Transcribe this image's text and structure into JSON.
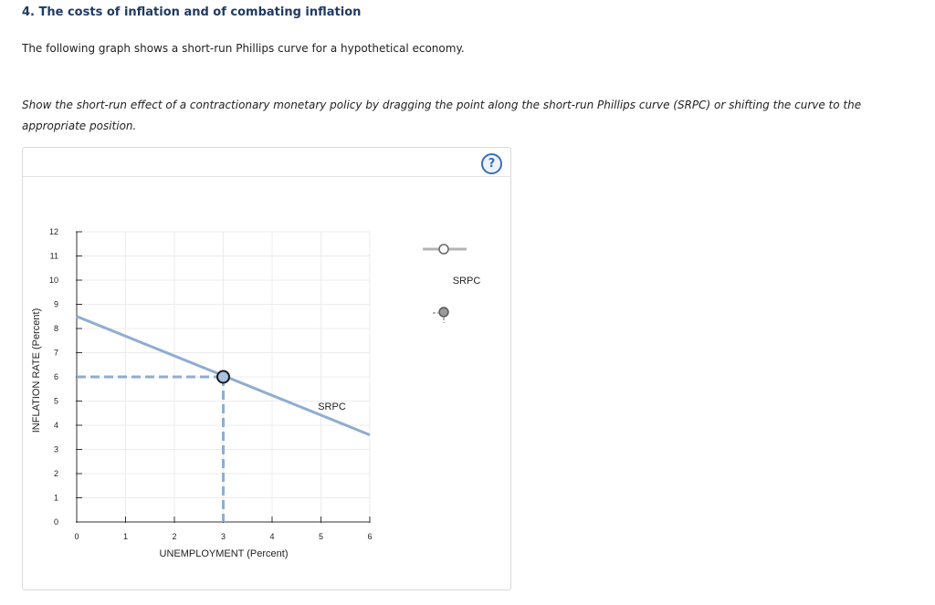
{
  "header": {
    "title": "4. The costs of inflation and of combating inflation",
    "intro": "The following graph shows a short-run Phillips curve for a hypothetical economy.",
    "instruction": "Show the short-run effect of a contractionary monetary policy by dragging the point along the short-run Phillips curve (SRPC) or shifting the curve to the appropriate position."
  },
  "help": {
    "symbol": "?",
    "icon": "help-circle-icon"
  },
  "palette": {
    "curve_tool_label": "SRPC",
    "curve_tool_icon": "line-with-point-icon",
    "point_tool_icon": "point-icon"
  },
  "colors": {
    "curve": "#8fadd1",
    "point_fill": "#a9c2e2",
    "point_stroke": "#1a1a1a",
    "title": "#1f3a63",
    "help": "#3b6fb6"
  },
  "chart_data": {
    "type": "line",
    "xlabel": "UNEMPLOYMENT (Percent)",
    "ylabel": "INFLATION RATE (Percent)",
    "xlim": [
      0,
      6
    ],
    "ylim": [
      0,
      12
    ],
    "xticks": [
      "0",
      "1",
      "2",
      "3",
      "4",
      "5",
      "6"
    ],
    "yticks": [
      "0",
      "1",
      "2",
      "3",
      "4",
      "5",
      "6",
      "7",
      "8",
      "9",
      "10",
      "11",
      "12"
    ],
    "grid": true,
    "series": [
      {
        "name": "SRPC",
        "x": [
          0,
          6
        ],
        "y": [
          8.5,
          3.6
        ]
      }
    ],
    "point": {
      "x": 3,
      "y": 6
    },
    "dashed_guides": true
  }
}
